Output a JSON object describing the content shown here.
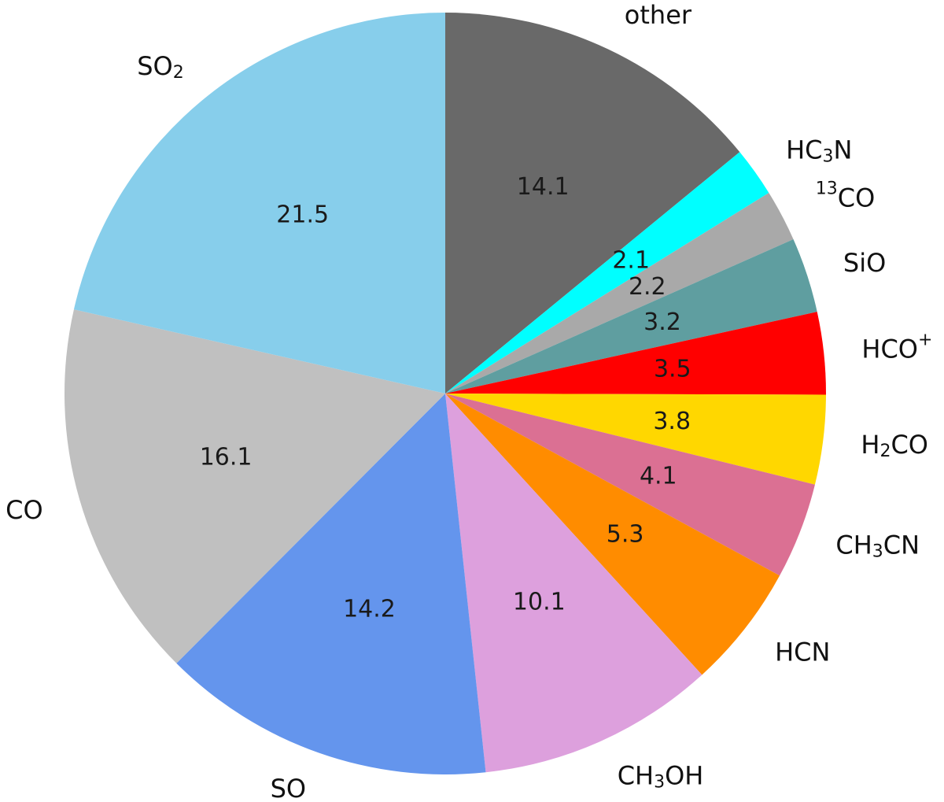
{
  "chart_data": {
    "type": "pie",
    "start_angle_deg": 90,
    "direction": "clockwise",
    "slices": [
      {
        "label": "other",
        "label_parts": [
          {
            "t": "other"
          }
        ],
        "value": 14.1,
        "value_label": "14.1",
        "color": "#696969"
      },
      {
        "label": "HC3N",
        "label_parts": [
          {
            "t": "HC"
          },
          {
            "t": "3",
            "s": "sub"
          },
          {
            "t": "N"
          }
        ],
        "value": 2.1,
        "value_label": "2.1",
        "color": "#00FFFF"
      },
      {
        "label": "13CO",
        "label_parts": [
          {
            "t": "13",
            "s": "sup"
          },
          {
            "t": "CO"
          }
        ],
        "value": 2.2,
        "value_label": "2.2",
        "color": "#A9A9A9"
      },
      {
        "label": "SiO",
        "label_parts": [
          {
            "t": "SiO"
          }
        ],
        "value": 3.2,
        "value_label": "3.2",
        "color": "#5F9EA0"
      },
      {
        "label": "HCO+",
        "label_parts": [
          {
            "t": "HCO"
          },
          {
            "t": "+",
            "s": "sup"
          }
        ],
        "value": 3.5,
        "value_label": "3.5",
        "color": "#FF0000"
      },
      {
        "label": "H2CO",
        "label_parts": [
          {
            "t": "H"
          },
          {
            "t": "2",
            "s": "sub"
          },
          {
            "t": "CO"
          }
        ],
        "value": 3.8,
        "value_label": "3.8",
        "color": "#FFD700"
      },
      {
        "label": "CH3CN",
        "label_parts": [
          {
            "t": "CH"
          },
          {
            "t": "3",
            "s": "sub"
          },
          {
            "t": "CN"
          }
        ],
        "value": 4.1,
        "value_label": "4.1",
        "color": "#DB7093"
      },
      {
        "label": "HCN",
        "label_parts": [
          {
            "t": "HCN"
          }
        ],
        "value": 5.3,
        "value_label": "5.3",
        "color": "#FF8C00"
      },
      {
        "label": "CH3OH",
        "label_parts": [
          {
            "t": "CH"
          },
          {
            "t": "3",
            "s": "sub"
          },
          {
            "t": "OH"
          }
        ],
        "value": 10.1,
        "value_label": "10.1",
        "color": "#DDA0DD"
      },
      {
        "label": "SO",
        "label_parts": [
          {
            "t": "SO"
          }
        ],
        "value": 14.2,
        "value_label": "14.2",
        "color": "#6495ED"
      },
      {
        "label": "CO",
        "label_parts": [
          {
            "t": "CO"
          }
        ],
        "value": 16.1,
        "value_label": "16.1",
        "color": "#C0C0C0"
      },
      {
        "label": "SO2",
        "label_parts": [
          {
            "t": "SO"
          },
          {
            "t": "2",
            "s": "sub"
          }
        ],
        "value": 21.5,
        "value_label": "21.5",
        "color": "#87CEEB"
      }
    ]
  }
}
